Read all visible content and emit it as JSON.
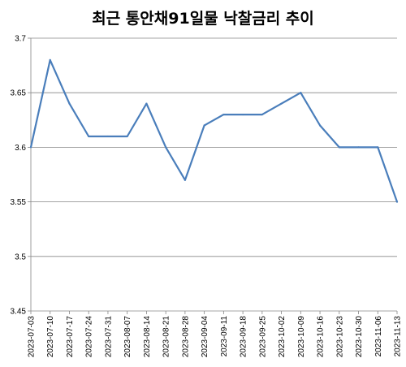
{
  "chart_data": {
    "type": "line",
    "title": "최근 통안채91일물 낙찰금리 추이",
    "xlabel": "",
    "ylabel": "",
    "ylim": [
      3.45,
      3.7
    ],
    "yticks": [
      "3.45",
      "3.5",
      "3.55",
      "3.6",
      "3.65",
      "3.7"
    ],
    "grid": "horizontal",
    "legend": "none",
    "colors": {
      "line": "#4a7ebb",
      "grid": "#868686",
      "axis": "#868686"
    },
    "x": [
      "2023-07-03",
      "2023-07-10",
      "2023-07-17",
      "2023-07-24",
      "2023-07-31",
      "2023-08-07",
      "2023-08-14",
      "2023-08-21",
      "2023-08-28",
      "2023-09-04",
      "2023-09-11",
      "2023-09-18",
      "2023-09-25",
      "2023-10-02",
      "2023-10-09",
      "2023-10-16",
      "2023-10-23",
      "2023-10-30",
      "2023-11-06",
      "2023-11-13"
    ],
    "series": [
      {
        "values": [
          3.6,
          3.68,
          3.64,
          3.61,
          3.61,
          3.61,
          3.64,
          3.6,
          3.57,
          3.62,
          3.63,
          3.63,
          3.63,
          3.64,
          3.65,
          3.62,
          3.6,
          3.6,
          3.6,
          3.55
        ]
      }
    ]
  }
}
